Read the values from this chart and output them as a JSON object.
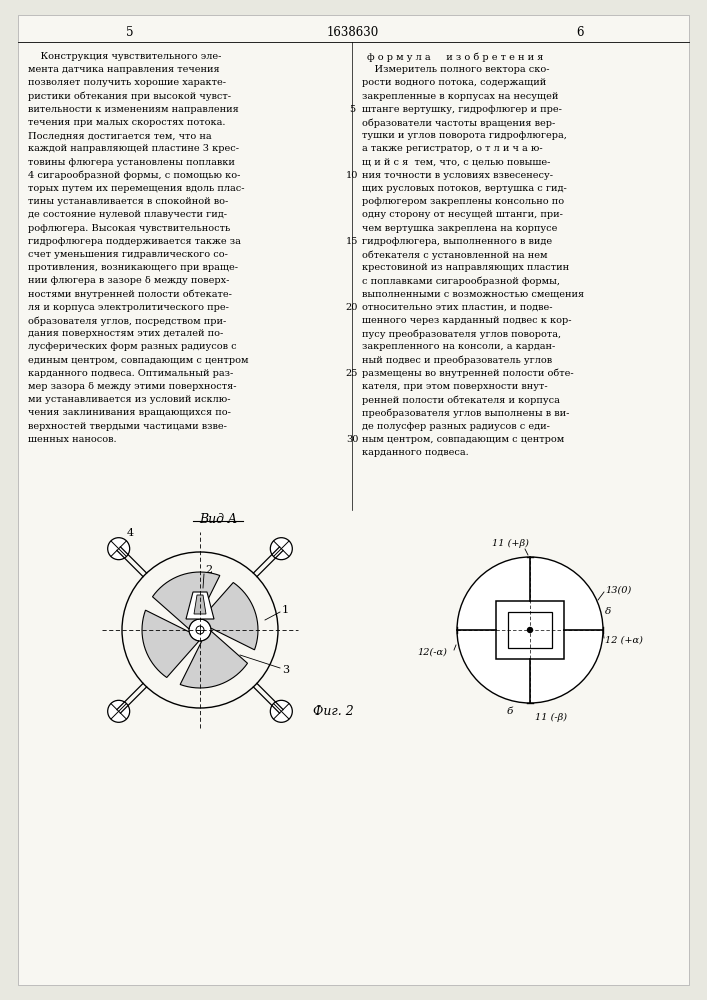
{
  "page_number_left": "5",
  "page_number_center": "1638630",
  "page_number_right": "6",
  "left_column_text": [
    "    Конструкция чувствительного эле-",
    "мента датчика направления течения",
    "позволяет получить хорошие характе-",
    "ристики обтекания при высокой чувст-",
    "вительности к изменениям направления",
    "течения при малых скоростях потока.",
    "Последняя достигается тем, что на",
    "каждой направляющей пластине 3 крес-",
    "товины флюгера установлены поплавки",
    "4 сигарообразной формы, с помощью ко-",
    "торых путем их перемещения вдоль плас-",
    "тины устанавливается в спокойной во-",
    "де состояние нулевой плавучести гид-",
    "рофлюгера. Высокая чувствительность",
    "гидрофлюгера поддерживается также за",
    "счет уменьшения гидравлического со-",
    "противления, возникающего при враще-",
    "нии флюгера в зазоре δ между поверх-",
    "ностями внутренней полости обтекате-",
    "ля и корпуса электролитического пре-",
    "образователя углов, посредством при-",
    "дания поверхностям этих деталей по-",
    "лусферических форм разных радиусов с",
    "единым центром, совпадающим с центром",
    "карданного подвеса. Оптимальный раз-",
    "мер зазора δ между этими поверхностя-",
    "ми устанавливается из условий исклю-",
    "чения заклинивания вращающихся по-",
    "верхностей твердыми частицами взве-",
    "шенных наносов."
  ],
  "right_col_header": "ф о р м у л а     и з о б р е т е н и я",
  "right_column_text": [
    "    Измеритель полного вектора ско-",
    "рости водного потока, содержащий",
    "закрепленные в корпусах на несущей",
    "штанге вертушку, гидрофлюгер и пре-",
    "образователи частоты вращения вер-",
    "тушки и углов поворота гидрофлюгера,",
    "а также регистратор, о т л и ч а ю-",
    "щ и й с я  тем, что, с целью повыше-",
    "ния точности в условиях взвесенесу-",
    "щих русловых потоков, вертушка с гид-",
    "рофлюгером закреплены консольно по",
    "одну сторону от несущей штанги, при-",
    "чем вертушка закреплена на корпусе",
    "гидрофлюгера, выполненного в виде",
    "обтекателя с установленной на нем",
    "крестовиной из направляющих пластин",
    "с поплавками сигарообразной формы,",
    "выполненными с возможностью смещения",
    "относительно этих пластин, и подве-",
    "шенного через карданный подвес к кор-",
    "пусу преобразователя углов поворота,",
    "закрепленного на консоли, а кардан-",
    "ный подвес и преобразователь углов",
    "размещены во внутренней полости обте-",
    "кателя, при этом поверхности внут-",
    "ренней полости обтекателя и корпуса",
    "преобразователя углов выполнены в ви-",
    "де полусфер разных радиусов с еди-",
    "ным центром, совпадающим с центром",
    "карданного подвеса."
  ],
  "line_numbers_positions": [
    4,
    9,
    14,
    19,
    24,
    29
  ],
  "line_number_values": [
    5,
    10,
    15,
    20,
    25,
    30
  ],
  "fig_label": "Фиг. 2",
  "vida_label": "Вид A",
  "bg_color": "#e8e8e0",
  "page_color": "#f8f7f2"
}
